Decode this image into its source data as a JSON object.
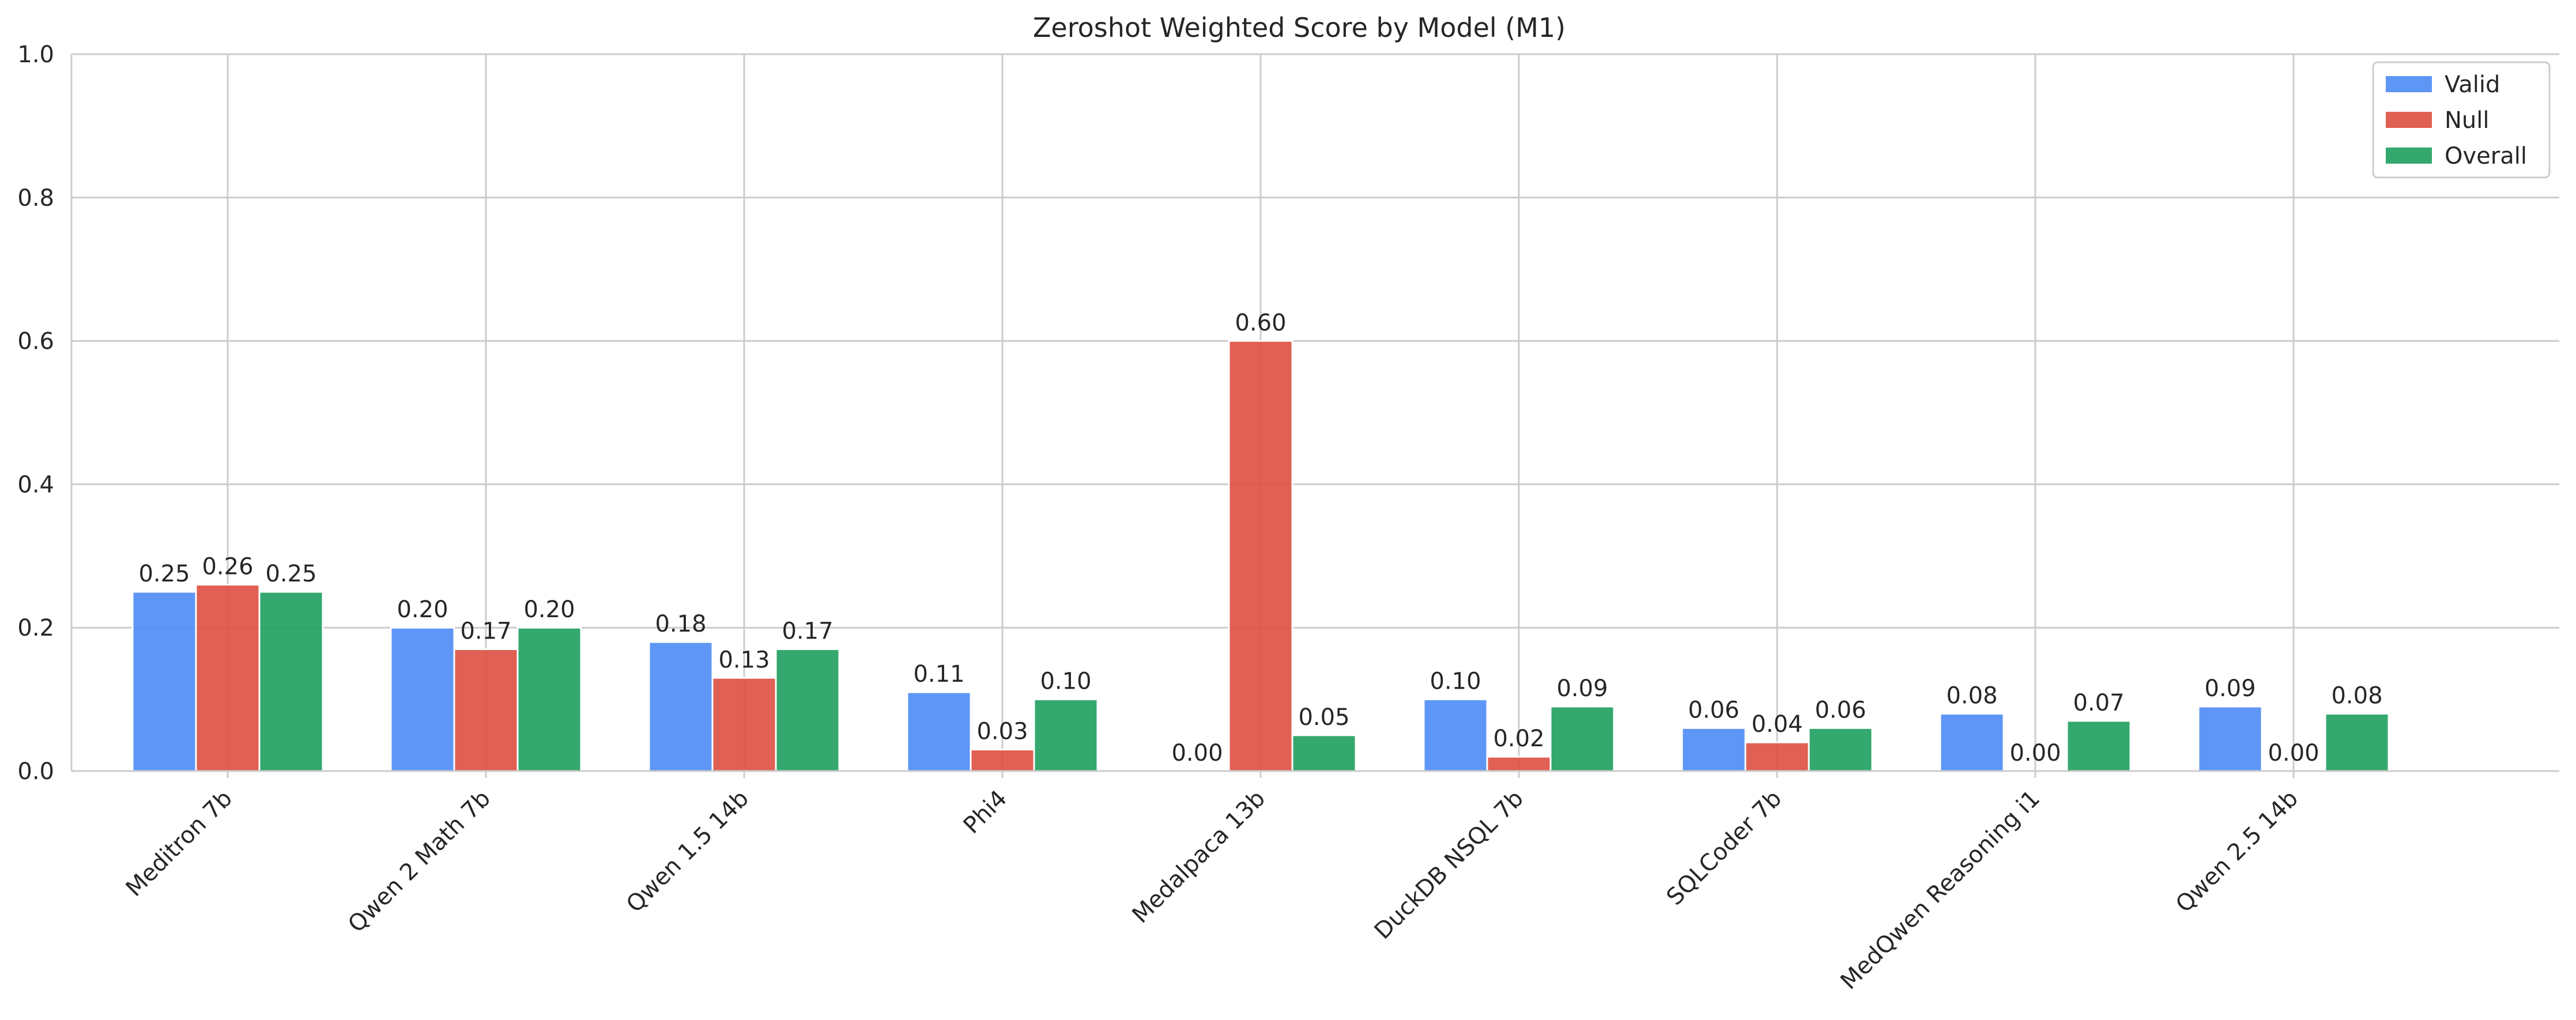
{
  "chart_data": {
    "type": "bar",
    "title": "Zeroshot Weighted Score by Model (M1)",
    "xlabel": "",
    "ylabel": "",
    "ylim": [
      0,
      1.0
    ],
    "yticks": [
      "0.0",
      "0.2",
      "0.4",
      "0.6",
      "0.8",
      "1.0"
    ],
    "grid": true,
    "legend_position": "top-right",
    "categories": [
      "Meditron 7b",
      "Qwen 2 Math 7b",
      "Qwen 1.5 14b",
      "Phi4",
      "Medalpaca 13b",
      "DuckDB NSQL 7b",
      "SQLCoder 7b",
      "MedQwen Reasoning i1",
      "Qwen 2.5 14b"
    ],
    "series": [
      {
        "name": "Valid",
        "color": "#4d8bf5",
        "values": [
          0.25,
          0.2,
          0.18,
          0.11,
          0.0,
          0.1,
          0.06,
          0.08,
          0.09
        ],
        "labels": [
          "0.25",
          "0.20",
          "0.18",
          "0.11",
          "0.00",
          "0.10",
          "0.06",
          "0.08",
          "0.09"
        ]
      },
      {
        "name": "Null",
        "color": "#dd4f40",
        "values": [
          0.26,
          0.17,
          0.13,
          0.03,
          0.6,
          0.02,
          0.04,
          0.0,
          0.0
        ],
        "labels": [
          "0.26",
          "0.17",
          "0.13",
          "0.03",
          "0.60",
          "0.02",
          "0.04",
          "0.00",
          "0.00"
        ]
      },
      {
        "name": "Overall",
        "color": "#1e9e5e",
        "values": [
          0.25,
          0.2,
          0.17,
          0.1,
          0.05,
          0.09,
          0.06,
          0.07,
          0.08
        ],
        "labels": [
          "0.25",
          "0.20",
          "0.17",
          "0.10",
          "0.05",
          "0.09",
          "0.06",
          "0.07",
          "0.08"
        ]
      }
    ]
  }
}
